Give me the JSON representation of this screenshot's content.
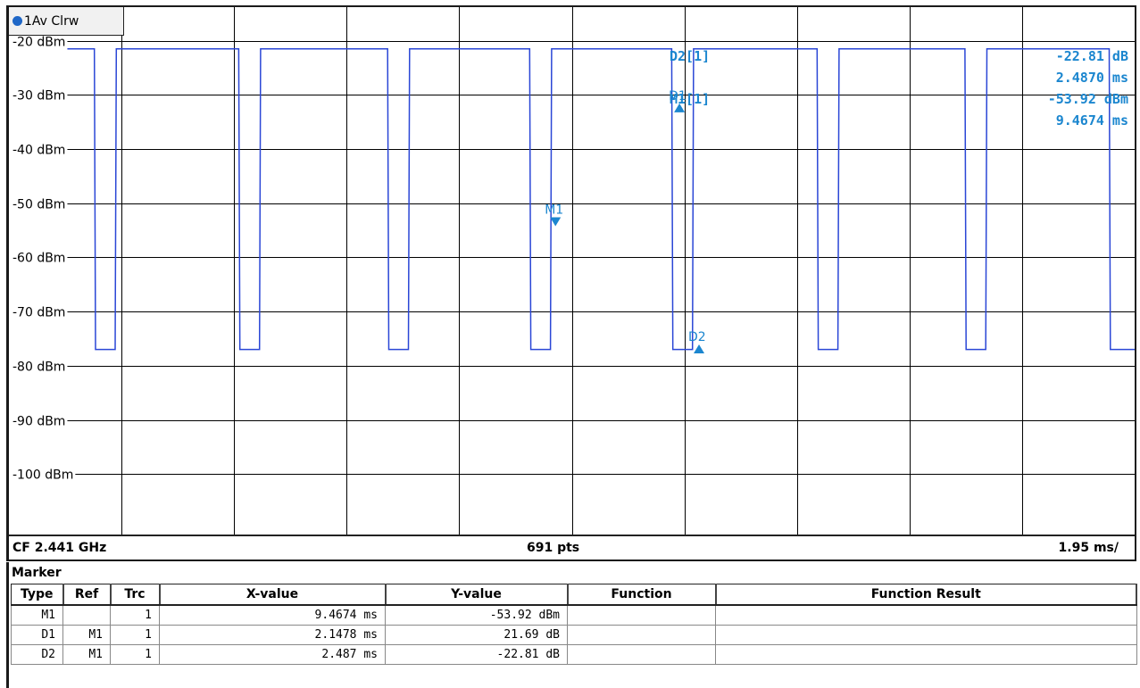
{
  "window": {
    "trace_label": "1Av Clrw",
    "center_frequency": "CF 2.441 GHz",
    "points": "691 pts",
    "time_per_div": "1.95 ms/"
  },
  "readouts": {
    "d2_name": "D2[1]",
    "d2_y": "-22.81 dB",
    "d2_x": "2.4870 ms",
    "m1_name": "M1[1]",
    "m1_y": "-53.92 dBm",
    "m1_x": "9.4674 ms"
  },
  "colors": {
    "trace": "#2a46d6",
    "marker": "#1b86cf",
    "grid": "#000000"
  },
  "chart_data": {
    "type": "line",
    "xlabel": "",
    "ylabel": "",
    "ylim": [
      -111.5,
      -13.8
    ],
    "xlim": [
      0,
      19.5
    ],
    "y_tick_values": [
      -20,
      -30,
      -40,
      -50,
      -60,
      -70,
      -80,
      -90,
      -100
    ],
    "y_tick_labels": [
      "-20 dBm",
      "-30 dBm",
      "-40 dBm",
      "-50 dBm",
      "-60 dBm",
      "-70 dBm",
      "-80 dBm",
      "-90 dBm",
      "-100 dBm"
    ],
    "x_divisions": 10,
    "grid": true,
    "series": [
      {
        "x": [
          0,
          1.48,
          1.5,
          1.84,
          1.86,
          3.98,
          4.0,
          4.34,
          4.36,
          6.56,
          6.58,
          6.92,
          6.94,
          9.02,
          9.04,
          9.38,
          9.4,
          11.48,
          11.5,
          11.84,
          11.86,
          14.0,
          14.02,
          14.36,
          14.38,
          16.56,
          16.58,
          16.92,
          16.94,
          19.06,
          19.08,
          19.5
        ],
        "y": [
          -21.5,
          -21.5,
          -77,
          -77,
          -21.5,
          -21.5,
          -77,
          -77,
          -21.5,
          -21.5,
          -77,
          -77,
          -21.5,
          -21.5,
          -77,
          -77,
          -21.5,
          -21.5,
          -77,
          -77,
          -21.5,
          -21.5,
          -77,
          -77,
          -21.5,
          -21.5,
          -77,
          -77,
          -21.5,
          -21.5,
          -77,
          -77
        ]
      }
    ],
    "markers": [
      {
        "label": "M1",
        "x": 9.4674,
        "y": -53.92,
        "direction": "down"
      },
      {
        "label": "D1",
        "x": 11.615,
        "y": -32.23,
        "direction": "up"
      },
      {
        "label": "D2",
        "x": 11.954,
        "y": -76.73,
        "direction": "up"
      }
    ]
  },
  "marker_table": {
    "title": "Marker",
    "headers": [
      "Type",
      "Ref",
      "Trc",
      "X-value",
      "Y-value",
      "Function",
      "Function Result"
    ],
    "rows": [
      [
        "M1",
        "",
        "1",
        "9.4674 ms",
        "-53.92 dBm",
        "",
        ""
      ],
      [
        "D1",
        "M1",
        "1",
        "2.1478 ms",
        "21.69 dB",
        "",
        ""
      ],
      [
        "D2",
        "M1",
        "1",
        "2.487 ms",
        "-22.81 dB",
        "",
        ""
      ]
    ]
  }
}
